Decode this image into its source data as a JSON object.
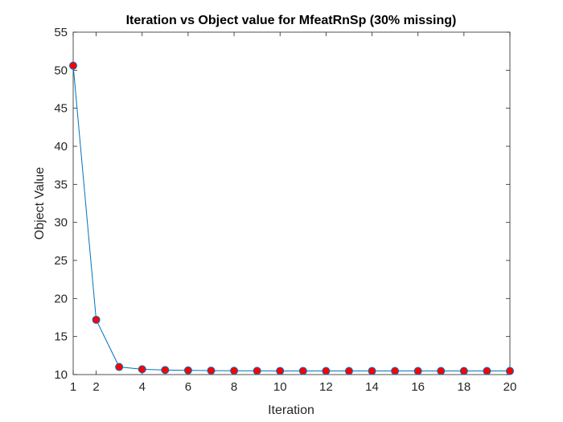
{
  "chart_data": {
    "type": "line",
    "title": "Iteration vs Object value for MfeatRnSp (30% missing)",
    "xlabel": "Iteration",
    "ylabel": "Object Value",
    "xlim": [
      1,
      20
    ],
    "ylim": [
      10,
      55
    ],
    "xticks": [
      2,
      4,
      6,
      8,
      10,
      12,
      14,
      16,
      18,
      20
    ],
    "yticks": [
      10,
      15,
      20,
      25,
      30,
      35,
      40,
      45,
      50,
      55
    ],
    "grid": false,
    "series": [
      {
        "x": [
          1,
          2,
          3,
          4,
          5,
          6,
          7,
          8,
          9,
          10,
          11,
          12,
          13,
          14,
          15,
          16,
          17,
          18,
          19,
          20
        ],
        "values": [
          50.6,
          17.2,
          11.0,
          10.7,
          10.6,
          10.55,
          10.52,
          10.5,
          10.49,
          10.48,
          10.48,
          10.47,
          10.47,
          10.47,
          10.47,
          10.47,
          10.47,
          10.47,
          10.47,
          10.47
        ],
        "line_color": "#0072BD",
        "marker_color": "#FF0000",
        "marker_edge_color": "#0072BD"
      }
    ]
  }
}
